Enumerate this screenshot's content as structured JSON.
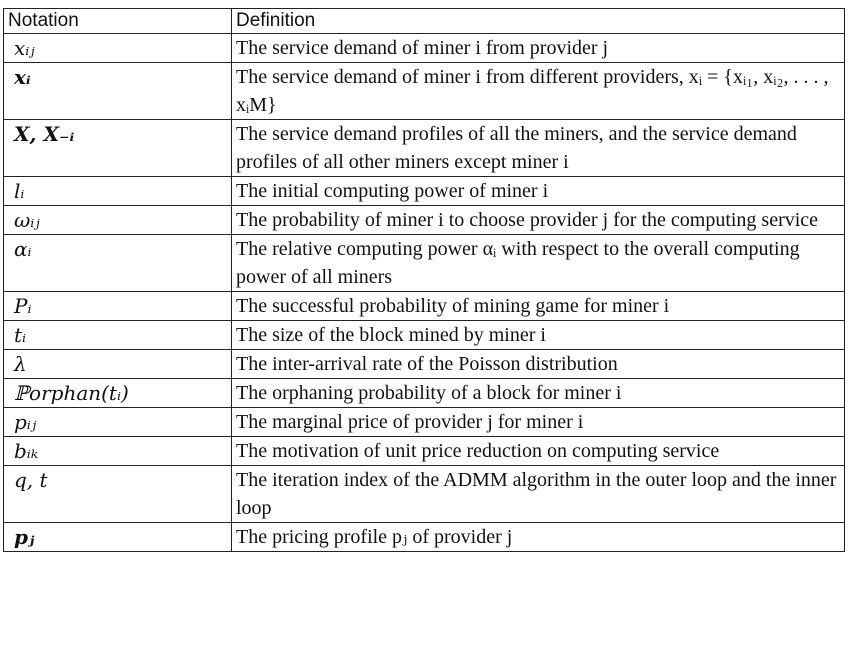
{
  "table": {
    "headers": {
      "notation": "Notation",
      "definition": "Definition"
    },
    "rows": [
      {
        "notation": "xᵢⱼ",
        "definition": "The service demand of miner i from provider j",
        "bold": false
      },
      {
        "notation": "xᵢ",
        "definition": "The service demand of miner i from different providers, xᵢ = {xᵢ₁, xᵢ₂, . . . , xᵢM}",
        "bold": true
      },
      {
        "notation": "X, X₋ᵢ",
        "definition": "The service demand profiles of all the miners, and the service demand profiles of all other miners except miner i",
        "bold": true
      },
      {
        "notation": "lᵢ",
        "definition": "The initial computing power of miner i",
        "bold": false
      },
      {
        "notation": "ωᵢⱼ",
        "definition": "The probability of miner i to choose provider j for the computing service",
        "bold": false
      },
      {
        "notation": "αᵢ",
        "definition": "The relative computing power αᵢ with respect to the overall computing power of all miners",
        "bold": false
      },
      {
        "notation": "Pᵢ",
        "definition": "The successful probability of mining game for miner i",
        "bold": false
      },
      {
        "notation": "tᵢ",
        "definition": "The size of the block mined by miner i",
        "bold": false
      },
      {
        "notation": "λ",
        "definition": "The inter-arrival rate of the Poisson distribution",
        "bold": false
      },
      {
        "notation": "ℙorphan(tᵢ)",
        "definition": "The orphaning probability of a block for miner i",
        "bold": false
      },
      {
        "notation": "pᵢⱼ",
        "definition": "The marginal price of provider j for miner i",
        "bold": false
      },
      {
        "notation": "bᵢₖ",
        "definition": "The motivation of unit price reduction on computing service",
        "bold": false
      },
      {
        "notation": "q, t",
        "definition": "The iteration index of the ADMM algorithm in the outer loop and the inner loop",
        "bold": false
      },
      {
        "notation": "pⱼ",
        "definition": "The pricing profile pⱼ of provider j",
        "bold": true
      }
    ]
  }
}
